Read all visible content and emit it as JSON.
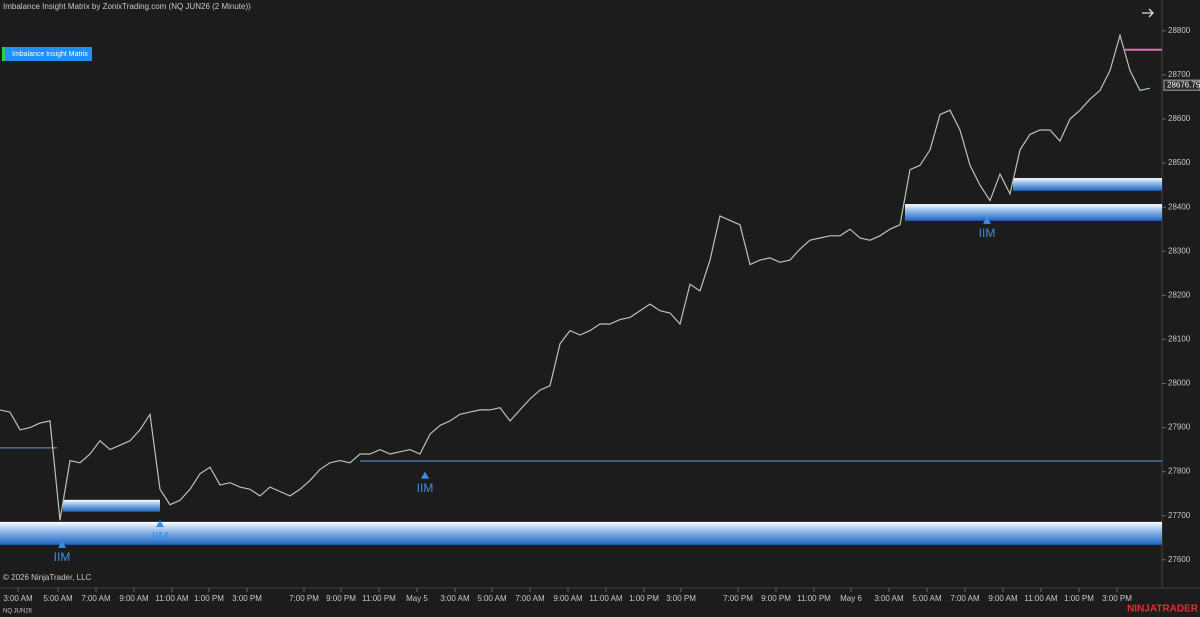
{
  "chart_data": {
    "type": "line",
    "title": "Imbalance Insight Matrix by ZonixTrading.com (NQ JUN26 (2 Minute))",
    "indicator_button": "Imbalance Insight Matrix",
    "copyright": "© 2026 NinjaTrader, LLC",
    "instrument": "NQ JUN26",
    "brand": "NINJATRADER",
    "last_price": 28676.75,
    "x": [
      0,
      1,
      2,
      3,
      4,
      5,
      6,
      7,
      8,
      9,
      10,
      11,
      12,
      13,
      14,
      15,
      16,
      17,
      18,
      19,
      20,
      21,
      22,
      23,
      24,
      25,
      26,
      27,
      28,
      29,
      30,
      31,
      32,
      33,
      34,
      35,
      36,
      37,
      38,
      39,
      40,
      41,
      42,
      43,
      44,
      45,
      46,
      47,
      48,
      49,
      50,
      51,
      52,
      53,
      54,
      55,
      56,
      57,
      58,
      59,
      60,
      61,
      62,
      63,
      64,
      65,
      66,
      67,
      68,
      69,
      70,
      71,
      72,
      73,
      74,
      75,
      76,
      77,
      78,
      79,
      80,
      81,
      82,
      83,
      84,
      85,
      86,
      87,
      88,
      89,
      90,
      91,
      92,
      93,
      94,
      95,
      96,
      97,
      98,
      99,
      100,
      101,
      102,
      103,
      104,
      105,
      106,
      107,
      108,
      109,
      110,
      111,
      112,
      113,
      114,
      115
    ],
    "series": [
      {
        "color": "#b8c4b8",
        "values": [
          27940,
          27935,
          27895,
          27900,
          27910,
          27915,
          27690,
          27825,
          27820,
          27840,
          27870,
          27850,
          27860,
          27870,
          27895,
          27930,
          27760,
          27725,
          27735,
          27760,
          27795,
          27810,
          27770,
          27775,
          27765,
          27760,
          27745,
          27765,
          27755,
          27745,
          27760,
          27780,
          27805,
          27820,
          27825,
          27820,
          27840,
          27840,
          27850,
          27840,
          27845,
          27850,
          27840,
          27885,
          27905,
          27915,
          27930,
          27935,
          27940,
          27940,
          27945,
          27915,
          27940,
          27965,
          27985,
          27995,
          28090,
          28120,
          28110,
          28120,
          28135,
          28135,
          28145,
          28150,
          28165,
          28180,
          28165,
          28160,
          28135,
          28225,
          28210,
          28280,
          28380,
          28370,
          28360,
          28270,
          28280,
          28285,
          28275,
          28280,
          28305,
          28325,
          28330,
          28335,
          28335,
          28350,
          28330,
          28325,
          28335,
          28350,
          28360,
          28485,
          28495,
          28530,
          28610,
          28620,
          28575,
          28495,
          28450,
          28415,
          28475,
          28430,
          28530,
          28565,
          28575,
          28575,
          28550,
          28600,
          28620,
          28645,
          28665,
          28710,
          28790,
          28710,
          28665,
          28670
        ]
      }
    ],
    "xlim": [
      0,
      116.2
    ],
    "ylim": [
      27536,
      28870
    ],
    "yticks": [
      27600,
      27700,
      27800,
      27900,
      28000,
      28100,
      28200,
      28300,
      28400,
      28500,
      28600,
      28700,
      28800
    ],
    "xticks": [
      {
        "value": 1.8,
        "label": "3:00 AM"
      },
      {
        "value": 5.8,
        "label": "5:00 AM"
      },
      {
        "value": 9.6,
        "label": "7:00 AM"
      },
      {
        "value": 13.4,
        "label": "9:00 AM"
      },
      {
        "value": 17.2,
        "label": "11:00 AM"
      },
      {
        "value": 20.9,
        "label": "1:00 PM"
      },
      {
        "value": 24.7,
        "label": "3:00 PM"
      },
      {
        "value": 30.4,
        "label": "7:00 PM"
      },
      {
        "value": 34.1,
        "label": "9:00 PM"
      },
      {
        "value": 37.9,
        "label": "11:00 PM"
      },
      {
        "value": 41.7,
        "label": "May 5"
      },
      {
        "value": 45.5,
        "label": "3:00 AM"
      },
      {
        "value": 49.2,
        "label": "5:00 AM"
      },
      {
        "value": 53.0,
        "label": "7:00 AM"
      },
      {
        "value": 56.8,
        "label": "9:00 AM"
      },
      {
        "value": 60.6,
        "label": "11:00 AM"
      },
      {
        "value": 64.4,
        "label": "1:00 PM"
      },
      {
        "value": 68.1,
        "label": "3:00 PM"
      },
      {
        "value": 73.8,
        "label": "7:00 PM"
      },
      {
        "value": 77.6,
        "label": "9:00 PM"
      },
      {
        "value": 81.4,
        "label": "11:00 PM"
      },
      {
        "value": 85.1,
        "label": "May 6"
      },
      {
        "value": 88.9,
        "label": "3:00 AM"
      },
      {
        "value": 92.7,
        "label": "5:00 AM"
      },
      {
        "value": 96.5,
        "label": "7:00 AM"
      },
      {
        "value": 100.3,
        "label": "9:00 AM"
      },
      {
        "value": 104.1,
        "label": "11:00 AM"
      },
      {
        "value": 107.9,
        "label": "1:00 PM"
      },
      {
        "value": 111.7,
        "label": "3:00 PM"
      }
    ],
    "zones": [
      {
        "low": 27634,
        "high": 27686,
        "start": 0,
        "end": 116.2
      },
      {
        "low": 27709,
        "high": 27736,
        "start": 6.3,
        "end": 16
      },
      {
        "low": 28369,
        "high": 28407,
        "start": 90.5,
        "end": 116.2
      },
      {
        "low": 28437,
        "high": 28466,
        "start": 101.3,
        "end": 116.2
      }
    ],
    "levels": [
      {
        "price": 27854,
        "start": 0,
        "end": 5.7,
        "color": "#5aa0e8"
      },
      {
        "price": 27824,
        "start": 36,
        "end": 116.2,
        "color": "#5aa0e8"
      },
      {
        "price": 28757,
        "start": 112.5,
        "end": 116.2,
        "color": "#e070b0"
      }
    ],
    "signals": [
      {
        "x": 6.2,
        "price": 27643,
        "label": "IIM"
      },
      {
        "x": 16,
        "price": 27690,
        "label": "IIM"
      },
      {
        "x": 42.5,
        "price": 27800,
        "label": "IIM"
      },
      {
        "x": 98.7,
        "price": 28378,
        "label": "IIM"
      }
    ]
  }
}
